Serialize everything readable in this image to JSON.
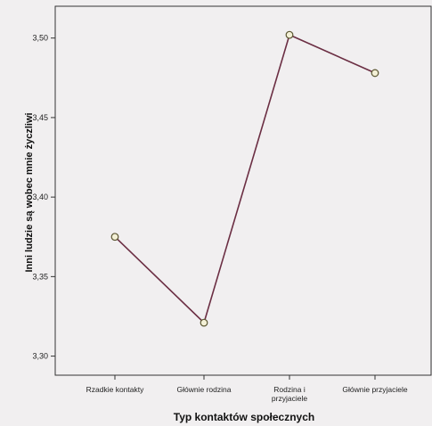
{
  "chart_data": {
    "type": "line",
    "categories": [
      "Rzadkie kontakty",
      "Głównie rodzina",
      "Rodzina i przyjaciele",
      "Głównie przyjaciele"
    ],
    "category_lines": [
      [
        "Rzadkie kontakty"
      ],
      [
        "Głównie rodzina"
      ],
      [
        "Rodzina i",
        "przyjaciele"
      ],
      [
        "Głównie przyjaciele"
      ]
    ],
    "series": [
      {
        "values": [
          3.375,
          3.321,
          3.502,
          3.478
        ]
      }
    ],
    "ylim": [
      3.288,
      3.52
    ],
    "yticks": [
      3.3,
      3.35,
      3.4,
      3.45,
      3.5
    ],
    "ytick_labels": [
      "3,30",
      "3,35",
      "3,40",
      "3,45",
      "3,50"
    ],
    "xlabel": "Typ kontaktów społecznych",
    "ylabel": "Inni ludzie są wobec mnie życzliwi",
    "grid": false,
    "colors": {
      "line": "#6b2e43",
      "marker_fill": "#f3f0d6",
      "marker_stroke": "#5a5530",
      "axis": "#333333"
    }
  }
}
